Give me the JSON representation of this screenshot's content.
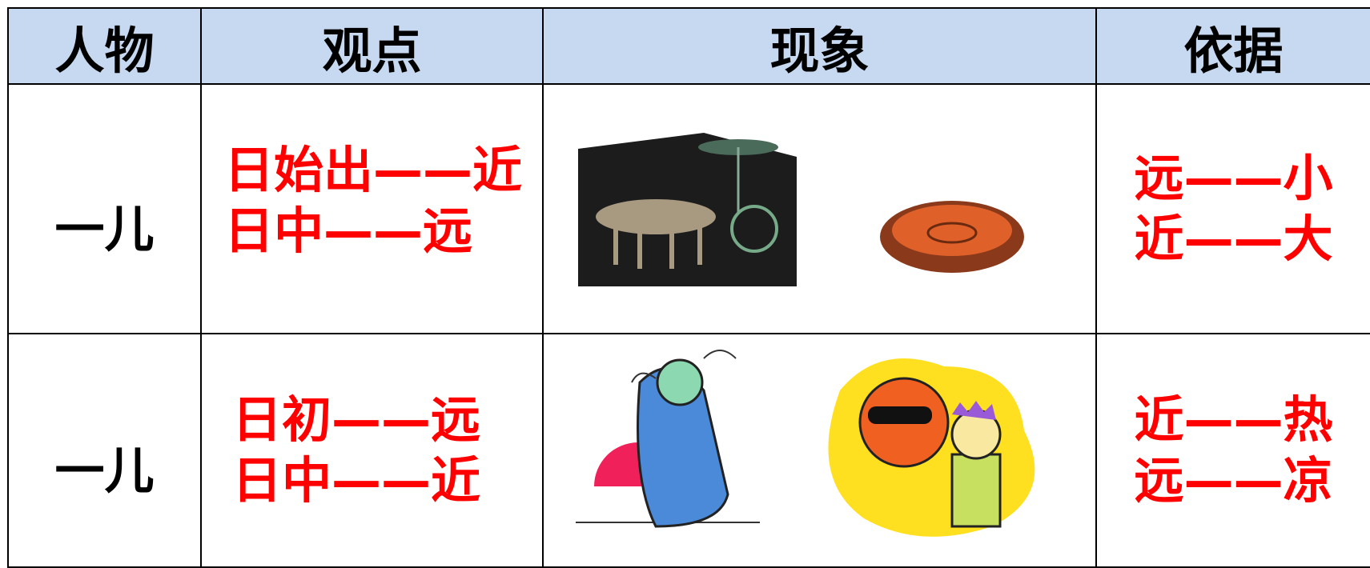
{
  "table": {
    "header": [
      "人物",
      "观点",
      "现象",
      "依据"
    ],
    "rows": [
      {
        "person": "一儿",
        "view": [
          "日始出——近",
          "日中——远"
        ],
        "basis": [
          "远——小",
          "近——大"
        ]
      },
      {
        "person": "一儿",
        "view": [
          "日初——远",
          "日中——近"
        ],
        "basis": [
          "近——热",
          "远——凉"
        ]
      }
    ]
  }
}
